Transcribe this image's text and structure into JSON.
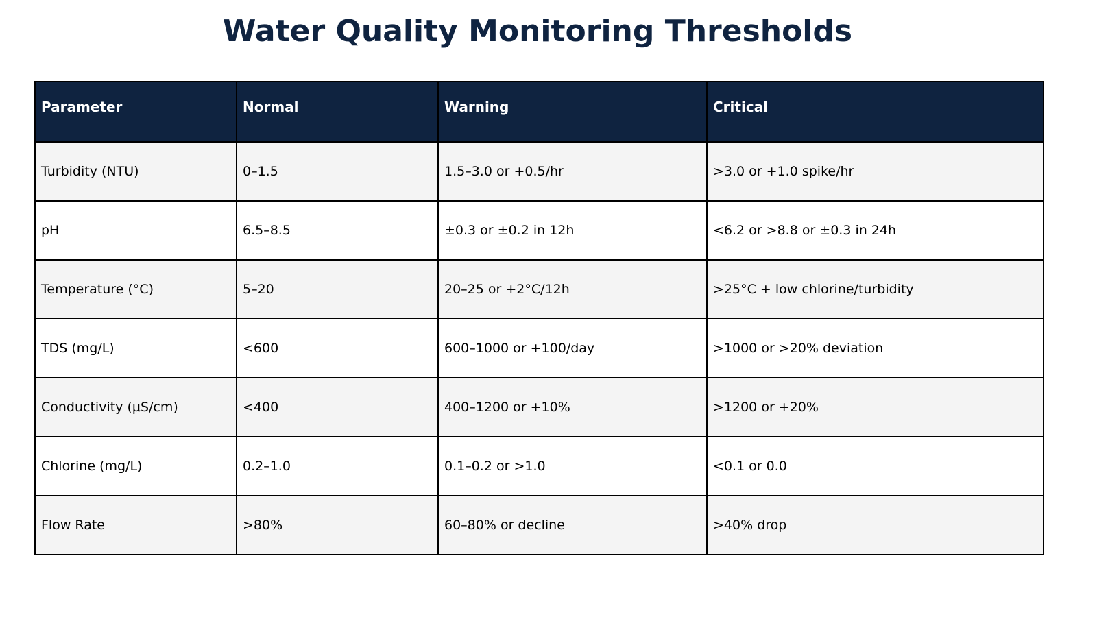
{
  "title": "Water Quality Monitoring Thresholds",
  "colors": {
    "header_bg": "#0f2340",
    "header_text": "#ffffff",
    "title_text": "#0f2340",
    "row_alt_bg": "#f4f4f4",
    "row_bg": "#ffffff",
    "border": "#000000"
  },
  "chart_data": {
    "type": "table",
    "title": "Water Quality Monitoring Thresholds",
    "columns": [
      "Parameter",
      "Normal",
      "Warning",
      "Critical"
    ],
    "rows": [
      [
        "Turbidity (NTU)",
        "0–1.5",
        "1.5–3.0 or +0.5/hr",
        ">3.0 or +1.0 spike/hr"
      ],
      [
        "pH",
        "6.5–8.5",
        "±0.3 or ±0.2 in 12h",
        "<6.2 or >8.8 or ±0.3 in 24h"
      ],
      [
        "Temperature (°C)",
        "5–20",
        "20–25 or +2°C/12h",
        ">25°C + low chlorine/turbidity"
      ],
      [
        "TDS (mg/L)",
        "<600",
        "600–1000 or +100/day",
        ">1000 or >20% deviation"
      ],
      [
        "Conductivity (µS/cm)",
        "<400",
        "400–1200 or +10%",
        ">1200 or +20%"
      ],
      [
        "Chlorine (mg/L)",
        "0.2–1.0",
        "0.1–0.2 or >1.0",
        "<0.1 or 0.0"
      ],
      [
        "Flow Rate",
        ">80%",
        "60–80% or decline",
        ">40% drop"
      ]
    ]
  }
}
